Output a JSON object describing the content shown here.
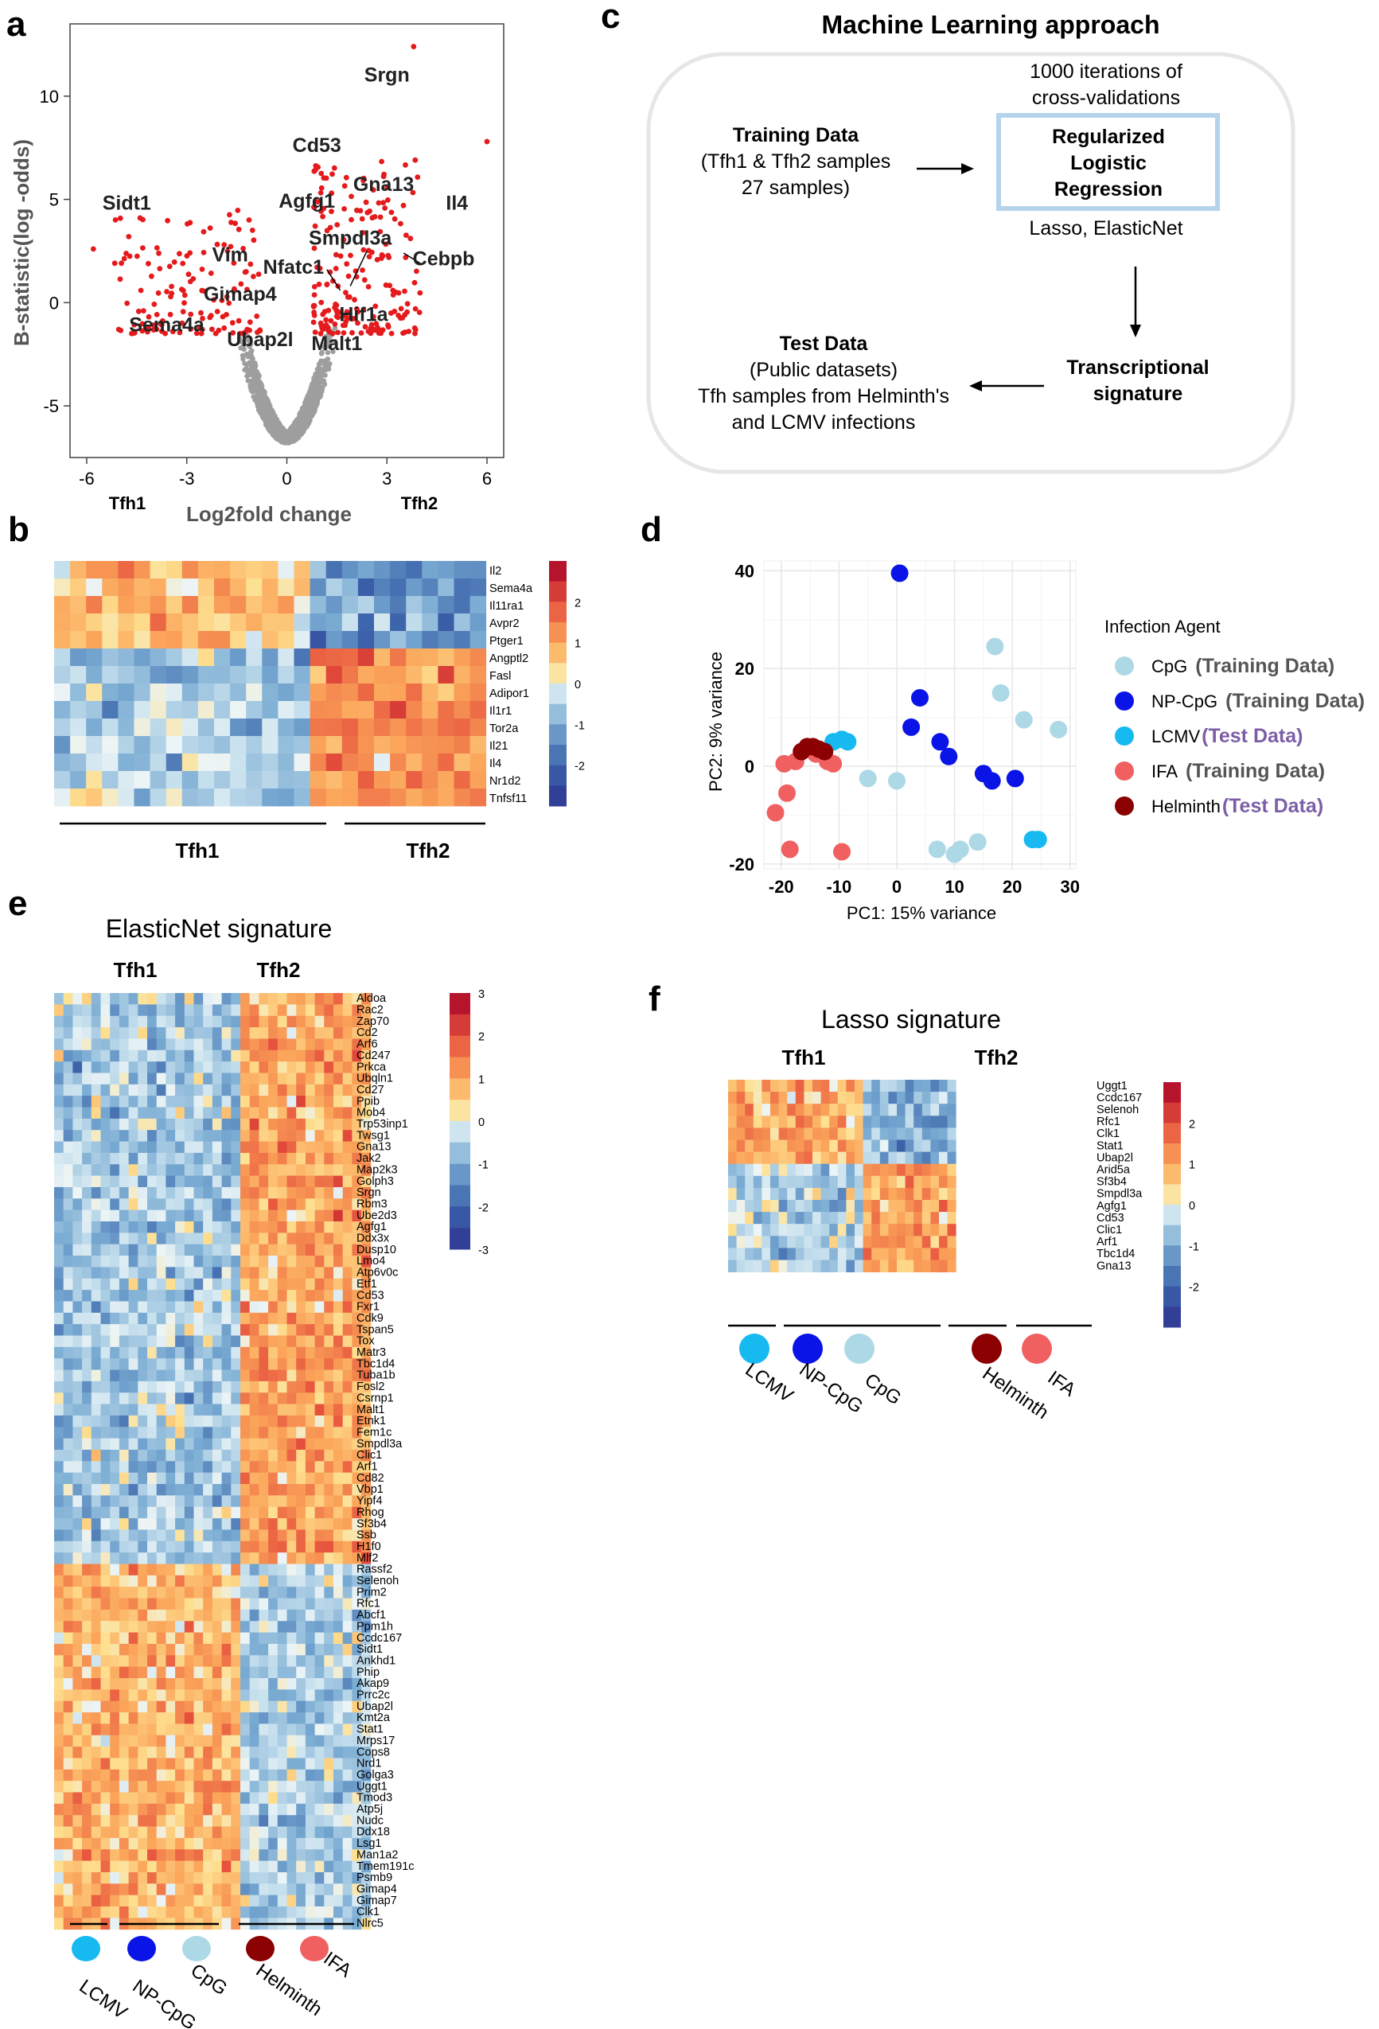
{
  "panel_letters": {
    "a": "a",
    "b": "b",
    "c": "c",
    "d": "d",
    "e": "e",
    "f": "f"
  },
  "chart_data": [
    {
      "id": "a",
      "type": "scatter",
      "title": "",
      "xlabel": "Log2fold change",
      "ylabel": "B-statistic(log -odds)",
      "xlim": [
        -6.5,
        6.5
      ],
      "ylim": [
        -7.5,
        13.5
      ],
      "xticks": [
        "-6",
        "-3",
        "0",
        "3",
        "6"
      ],
      "yticks": [
        "10",
        "5",
        "0",
        "-5"
      ],
      "side_labels": {
        "left": "Tfh1",
        "right": "Tfh2"
      },
      "highlight_color": "#e41a1c",
      "background_color": "#9e9e9e",
      "labels": [
        {
          "text": "Srgn",
          "x": 3.0,
          "y": 10.7
        },
        {
          "text": "Cd53",
          "x": 0.9,
          "y": 7.3
        },
        {
          "text": "Gna13",
          "x": 2.9,
          "y": 5.4
        },
        {
          "text": "Il4",
          "x": 5.1,
          "y": 4.5
        },
        {
          "text": "Sidt1",
          "x": -4.8,
          "y": 4.5
        },
        {
          "text": "Agfg1",
          "x": 0.6,
          "y": 4.6
        },
        {
          "text": "Smpdl3a",
          "x": 1.9,
          "y": 2.8
        },
        {
          "text": "Cebpb",
          "x": 4.7,
          "y": 1.8
        },
        {
          "text": "Vim",
          "x": -1.7,
          "y": 2.0
        },
        {
          "text": "Nfatc1",
          "x": 0.2,
          "y": 1.4
        },
        {
          "text": "Gimap4",
          "x": -1.4,
          "y": 0.1
        },
        {
          "text": "Hif1a",
          "x": 2.3,
          "y": -0.9
        },
        {
          "text": "Sema4a",
          "x": -3.6,
          "y": -1.4
        },
        {
          "text": "Ubap2l",
          "x": -0.8,
          "y": -2.1
        },
        {
          "text": "Malt1",
          "x": 1.5,
          "y": -2.3
        }
      ]
    },
    {
      "id": "b",
      "type": "heatmap",
      "rows": [
        "Il2",
        "Sema4a",
        "Il11ra1",
        "Avpr2",
        "Ptger1",
        "Angptl2",
        "Fasl",
        "Adipor1",
        "Il1r1",
        "Tor2a",
        "Il21",
        "Il4",
        "Nr1d2",
        "Tnfsf11"
      ],
      "groups": [
        {
          "name": "Tfh1",
          "n": 16
        },
        {
          "name": "Tfh2",
          "n": 11
        }
      ],
      "n_up_top": 5,
      "scale": [
        "2",
        "1",
        "0",
        "-1",
        "-2"
      ],
      "range": [
        -3,
        3
      ]
    },
    {
      "id": "c",
      "type": "table",
      "title": "Machine Learning approach",
      "box1": {
        "line1": "1000 iterations  of",
        "line2": "cross-validations"
      },
      "model": [
        "Regularized",
        "Logistic",
        "Regression"
      ],
      "methods": "Lasso, ElasticNet",
      "training": [
        "Training Data",
        "(Tfh1 & Tfh2 samples",
        "27 samples)"
      ],
      "signature": [
        "Transcriptional",
        "signature"
      ],
      "test": [
        "Test Data",
        "(Public datasets)",
        "Tfh samples  from Helminth's",
        "and  LCMV infections"
      ]
    },
    {
      "id": "d",
      "type": "scatter",
      "xlabel": "PC1: 15% variance",
      "ylabel": "PC2: 9% variance",
      "xlim": [
        -23,
        31
      ],
      "ylim": [
        -21,
        42
      ],
      "xticks": [
        "-20",
        "-10",
        "0",
        "10",
        "20",
        "30"
      ],
      "yticks": [
        "40",
        "20",
        "0",
        "-20"
      ],
      "legend_title": "Infection Agent",
      "series": [
        {
          "name": "CpG",
          "tag": "(Training Data)",
          "test": false,
          "color": "#add8e6",
          "points": [
            [
              -5,
              -2.5
            ],
            [
              0,
              -3
            ],
            [
              7,
              -17
            ],
            [
              10,
              -18
            ],
            [
              11,
              -17
            ],
            [
              14,
              -15.5
            ],
            [
              17,
              24.5
            ],
            [
              18,
              15
            ],
            [
              22,
              9.5
            ],
            [
              28,
              7.5
            ]
          ]
        },
        {
          "name": "NP-CpG",
          "tag": "(Training Data)",
          "test": false,
          "color": "#0a14e6",
          "points": [
            [
              0.5,
              39.5
            ],
            [
              2.5,
              8
            ],
            [
              4,
              14
            ],
            [
              7.5,
              5
            ],
            [
              9,
              2
            ],
            [
              15,
              -1.5
            ],
            [
              16.5,
              -3
            ],
            [
              20.5,
              -2.5
            ]
          ]
        },
        {
          "name": "LCMV",
          "tag": "(Test Data)",
          "test": true,
          "color": "#16b9f0",
          "points": [
            [
              -11,
              5
            ],
            [
              -9.5,
              5.5
            ],
            [
              -8.5,
              5
            ],
            [
              23.5,
              -15
            ],
            [
              24.5,
              -15
            ]
          ]
        },
        {
          "name": "IFA",
          "tag": "(Training Data)",
          "test": false,
          "color": "#f06060",
          "points": [
            [
              -21,
              -9.5
            ],
            [
              -19.5,
              0.5
            ],
            [
              -19,
              -5.5
            ],
            [
              -18.5,
              -17
            ],
            [
              -17.5,
              1
            ],
            [
              -14,
              2.5
            ],
            [
              -12,
              1
            ],
            [
              -11,
              0.5
            ],
            [
              -9.5,
              -17.5
            ]
          ]
        },
        {
          "name": "Helminth",
          "tag": "(Test Data)",
          "test": true,
          "color": "#8b0000",
          "points": [
            [
              -16.5,
              3
            ],
            [
              -15.5,
              4
            ],
            [
              -14.5,
              4
            ],
            [
              -13.5,
              3.5
            ],
            [
              -12.5,
              3
            ]
          ]
        }
      ]
    },
    {
      "id": "e",
      "type": "heatmap",
      "title": "ElasticNet signature",
      "groups": [
        {
          "name": "Tfh1",
          "n": 20
        },
        {
          "name": "Tfh2",
          "n": 14
        }
      ],
      "rows": [
        "Aldoa",
        "Rac2",
        "Zap70",
        "Cd2",
        "Arf6",
        "Cd247",
        "Prkca",
        "Ubqln1",
        "Cd27",
        "Ppib",
        "Mob4",
        "Trp53inp1",
        "Twsg1",
        "Gna13",
        "Jak2",
        "Map2k3",
        "Golph3",
        "Srgn",
        "Rbm3",
        "Ube2d3",
        "Agfg1",
        "Ddx3x",
        "Dusp10",
        "Lmo4",
        "Atp6v0c",
        "Etf1",
        "Cd53",
        "Fxr1",
        "Cdk9",
        "Tspan5",
        "Tox",
        "Matr3",
        "Tbc1d4",
        "Tuba1b",
        "Fosl2",
        "Csrnp1",
        "Malt1",
        "Etnk1",
        "Fem1c",
        "Smpdl3a",
        "Clic1",
        "Arf1",
        "Cd82",
        "Vbp1",
        "Yipf4",
        "Rhog",
        "Sf3b4",
        "Ssb",
        "H1f0",
        "Mlf2",
        "Rassf2",
        "Selenoh",
        "Prim2",
        "Rfc1",
        "Abcf1",
        "Ppm1h",
        "Ccdc167",
        "Sidt1",
        "Ankhd1",
        "Phip",
        "Akap9",
        "Prrc2c",
        "Ubap2l",
        "Kmt2a",
        "Stat1",
        "Mrps17",
        "Cops8",
        "Nrd1",
        "Golga3",
        "Uggt1",
        "Tmod3",
        "Atp5j",
        "Nudc",
        "Ddx18",
        "Lsg1",
        "Man1a2",
        "Tmem191c",
        "Psmb9",
        "Gimap4",
        "Gimap7",
        "Clk1",
        "Nlrc5"
      ],
      "n_up_tfh2": 50,
      "scale": [
        "3",
        "2",
        "1",
        "0",
        "-1",
        "-2",
        "-3"
      ],
      "range": [
        -3,
        3
      ],
      "dots": [
        {
          "label": "LCMV",
          "color": "#16b9f0"
        },
        {
          "label": "NP-CpG",
          "color": "#0a14e6"
        },
        {
          "label": "CpG",
          "color": "#add8e6"
        },
        {
          "label": "Helminth",
          "color": "#8b0000"
        },
        {
          "label": "IFA",
          "color": "#f06060"
        }
      ]
    },
    {
      "id": "f",
      "type": "heatmap",
      "title": "Lasso signature",
      "groups": [
        {
          "name": "Tfh1",
          "n": 16
        },
        {
          "name": "Tfh2",
          "n": 11
        }
      ],
      "rows": [
        "Uggt1",
        "Ccdc167",
        "Selenoh",
        "Rfc1",
        "Clk1",
        "Stat1",
        "Ubap2l",
        "Arid5a",
        "Sf3b4",
        "Smpdl3a",
        "Agfg1",
        "Cd53",
        "Clic1",
        "Arf1",
        "Tbc1d4",
        "Gna13"
      ],
      "n_up_tfh1": 7,
      "scale": [
        "2",
        "1",
        "0",
        "-1",
        "-2"
      ],
      "range": [
        -3,
        3
      ],
      "dots": [
        {
          "label": "LCMV",
          "color": "#16b9f0"
        },
        {
          "label": "NP-CpG",
          "color": "#0a14e6"
        },
        {
          "label": "CpG",
          "color": "#add8e6"
        },
        {
          "label": "Helminth",
          "color": "#8b0000"
        },
        {
          "label": "IFA",
          "color": "#f06060"
        }
      ]
    }
  ]
}
